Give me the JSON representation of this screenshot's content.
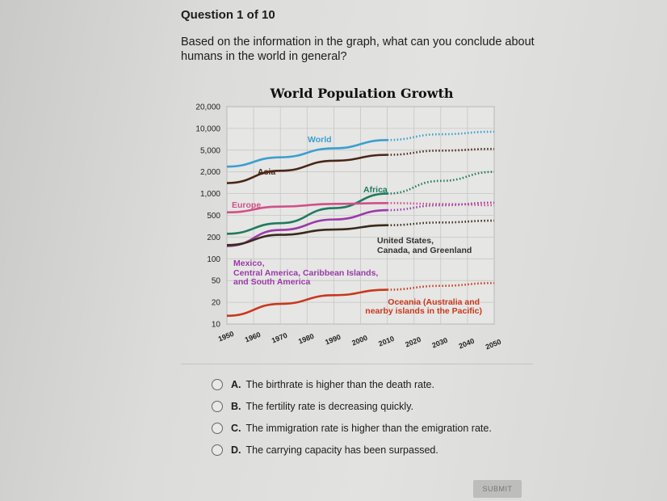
{
  "question": {
    "number_label": "Question 1 of 10",
    "text": "Based on the information in the graph, what can you conclude about humans in the world in general?"
  },
  "chart_data": {
    "type": "line",
    "title": "World Population Growth",
    "xlabel": "",
    "ylabel": "",
    "y_scale": "log",
    "y_ticks": [
      "20,000",
      "10,000",
      "5,000",
      "2,000",
      "1,000",
      "500",
      "200",
      "100",
      "50",
      "20",
      "10"
    ],
    "y_tick_values": [
      20000,
      10000,
      5000,
      2000,
      1000,
      500,
      200,
      100,
      50,
      20,
      10
    ],
    "x_ticks": [
      "1950",
      "1960",
      "1970",
      "1980",
      "1990",
      "2000",
      "2010",
      "2020",
      "2030",
      "2040",
      "2050"
    ],
    "xlim": [
      1950,
      2050
    ],
    "ylim": [
      10,
      20000
    ],
    "grid": true,
    "note_style": "solid lines 1950-2010, dotted projections 2010-2050",
    "series": [
      {
        "name": "World",
        "color": "#3a9fd0",
        "x": [
          1950,
          1970,
          1990,
          2010
        ],
        "values": [
          2500,
          3700,
          5300,
          6900
        ],
        "projection_x": [
          2010,
          2030,
          2050
        ],
        "projection": [
          6900,
          8300,
          9000
        ]
      },
      {
        "name": "Asia",
        "color": "#4a2616",
        "x": [
          1950,
          1970,
          1990,
          2010
        ],
        "values": [
          1400,
          2100,
          3200,
          4100
        ],
        "projection_x": [
          2010,
          2030,
          2050
        ],
        "projection": [
          4100,
          4900,
          5200
        ]
      },
      {
        "name": "Africa",
        "color": "#1f7a5e",
        "x": [
          1950,
          1970,
          1990,
          2010
        ],
        "values": [
          230,
          360,
          630,
          1000
        ],
        "projection_x": [
          2010,
          2030,
          2050
        ],
        "projection": [
          1000,
          1500,
          2000
        ]
      },
      {
        "name": "Europe",
        "color": "#d0508a",
        "x": [
          1950,
          1970,
          1990,
          2010
        ],
        "values": [
          550,
          660,
          720,
          740
        ],
        "projection_x": [
          2010,
          2030,
          2050
        ],
        "projection": [
          740,
          720,
          690
        ]
      },
      {
        "name": "Mexico, Central America, Caribbean Islands, and South America",
        "color": "#9a3aa8",
        "x": [
          1950,
          1970,
          1990,
          2010
        ],
        "values": [
          150,
          270,
          420,
          590
        ],
        "projection_x": [
          2010,
          2030,
          2050
        ],
        "projection": [
          590,
          690,
          750
        ]
      },
      {
        "name": "United States, Canada, and Greenland",
        "color": "#3a2a1a",
        "x": [
          1950,
          1970,
          1990,
          2010
        ],
        "values": [
          155,
          220,
          275,
          330
        ],
        "projection_x": [
          2010,
          2030,
          2050
        ],
        "projection": [
          330,
          370,
          400
        ]
      },
      {
        "name": "Oceania (Australia and nearby islands in the Pacific)",
        "color": "#c8381c",
        "x": [
          1950,
          1970,
          1990,
          2010
        ],
        "values": [
          13,
          19,
          27,
          34
        ],
        "projection_x": [
          2010,
          2030,
          2050
        ],
        "projection": [
          34,
          40,
          45
        ]
      }
    ],
    "labels": {
      "world": "World",
      "asia": "Asia",
      "africa": "Africa",
      "europe": "Europe",
      "latam_1": "Mexico,",
      "latam_2": "Central America, Caribbean Islands,",
      "latam_3": "and South America",
      "na_1": "United States,",
      "na_2": "Canada, and Greenland",
      "oceania_1": "Oceania (Australia and",
      "oceania_2": "nearby islands in the Pacific)"
    }
  },
  "choices": [
    {
      "letter": "A.",
      "text": "The birthrate is higher than the death rate."
    },
    {
      "letter": "B.",
      "text": "The fertility rate is decreasing quickly."
    },
    {
      "letter": "C.",
      "text": "The immigration rate is higher than the emigration rate."
    },
    {
      "letter": "D.",
      "text": "The carrying capacity has been surpassed."
    }
  ],
  "submit_label": "SUBMIT"
}
